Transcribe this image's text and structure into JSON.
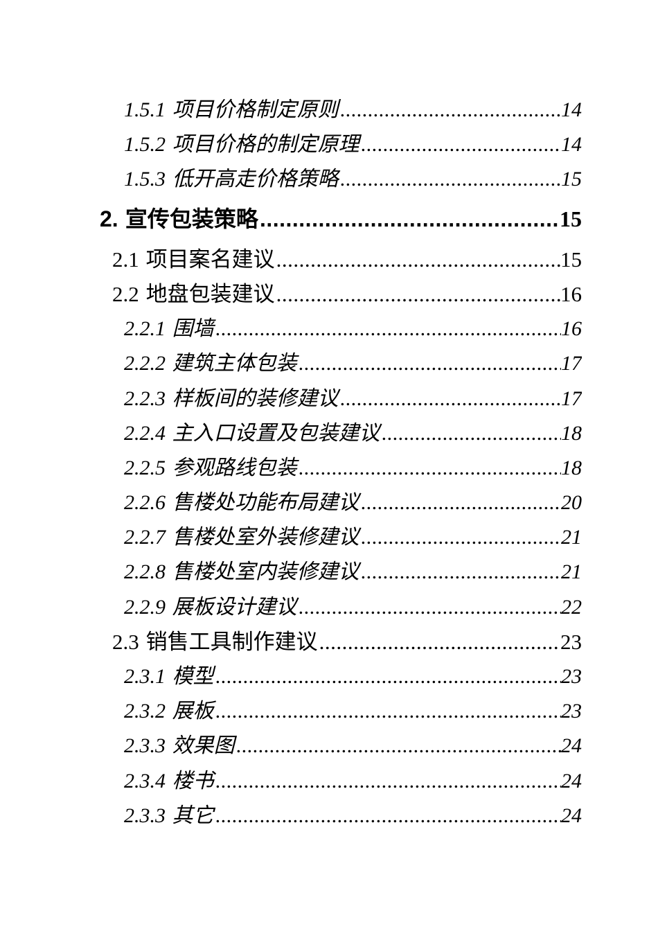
{
  "page": {
    "background_color": "#ffffff",
    "text_color": "#000000"
  },
  "toc": {
    "entries": [
      {
        "level": 3,
        "number": "1.5.1",
        "title": "项目价格制定原则",
        "page": "14"
      },
      {
        "level": 3,
        "number": "1.5.2",
        "title": "项目价格的制定原理",
        "page": "14"
      },
      {
        "level": 3,
        "number": "1.5.3",
        "title": "低开高走价格策略",
        "page": "15"
      },
      {
        "level": 1,
        "number": "2.",
        "title": "宣传包装策略",
        "page": "15"
      },
      {
        "level": 2,
        "number": "2.1",
        "title": "项目案名建议",
        "page": "15"
      },
      {
        "level": 2,
        "number": "2.2",
        "title": "地盘包装建议",
        "page": "16"
      },
      {
        "level": 3,
        "number": "2.2.1",
        "title": "围墙",
        "page": "16"
      },
      {
        "level": 3,
        "number": "2.2.2",
        "title": "建筑主体包装",
        "page": "17"
      },
      {
        "level": 3,
        "number": "2.2.3",
        "title": "样板间的装修建议",
        "page": "17"
      },
      {
        "level": 3,
        "number": "2.2.4",
        "title": "主入口设置及包装建议",
        "page": "18"
      },
      {
        "level": 3,
        "number": "2.2.5",
        "title": "参观路线包装",
        "page": "18"
      },
      {
        "level": 3,
        "number": "2.2.6",
        "title": "售楼处功能布局建议",
        "page": "20"
      },
      {
        "level": 3,
        "number": "2.2.7",
        "title": "售楼处室外装修建议",
        "page": "21"
      },
      {
        "level": 3,
        "number": "2.2.8",
        "title": "售楼处室内装修建议",
        "page": "21"
      },
      {
        "level": 3,
        "number": "2.2.9",
        "title": "展板设计建议",
        "page": "22"
      },
      {
        "level": 2,
        "number": "2.3",
        "title": "销售工具制作建议",
        "page": "23"
      },
      {
        "level": 3,
        "number": "2.3.1",
        "title": "模型",
        "page": "23"
      },
      {
        "level": 3,
        "number": "2.3.2",
        "title": "展板",
        "page": "23"
      },
      {
        "level": 3,
        "number": "2.3.3",
        "title": "效果图",
        "page": "24"
      },
      {
        "level": 3,
        "number": "2.3.4",
        "title": "楼书",
        "page": "24"
      },
      {
        "level": 3,
        "number": "2.3.3",
        "title": "其它",
        "page": "24"
      }
    ]
  }
}
